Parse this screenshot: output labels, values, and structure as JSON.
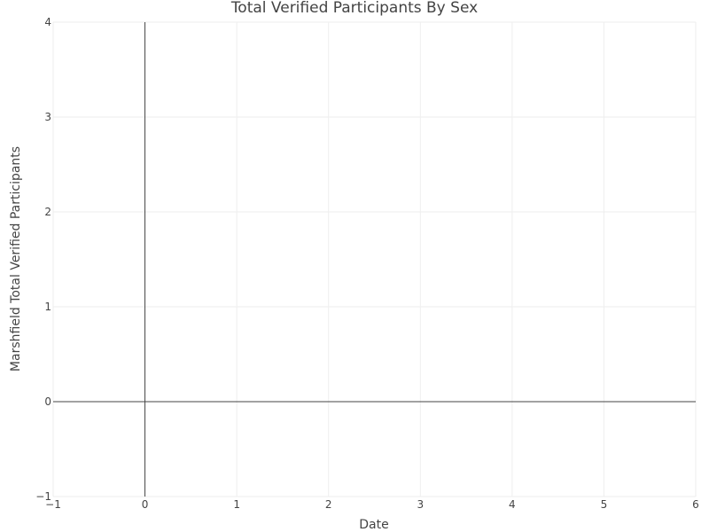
{
  "chart_data": {
    "type": "line",
    "title": "Total Verified Participants By Sex",
    "xlabel": "Date",
    "ylabel": "Marshfield Total Verified Participants",
    "xlim": [
      -1,
      6
    ],
    "ylim": [
      -1,
      4
    ],
    "x_ticks": [
      -1,
      0,
      1,
      2,
      3,
      4,
      5,
      6
    ],
    "y_ticks": [
      -1,
      0,
      1,
      2,
      3,
      4
    ],
    "x_tick_labels": [
      "−1",
      "0",
      "1",
      "2",
      "3",
      "4",
      "5",
      "6"
    ],
    "y_tick_labels": [
      "−1",
      "0",
      "1",
      "2",
      "3",
      "4"
    ],
    "grid": true,
    "zero_lines": true,
    "series": []
  }
}
